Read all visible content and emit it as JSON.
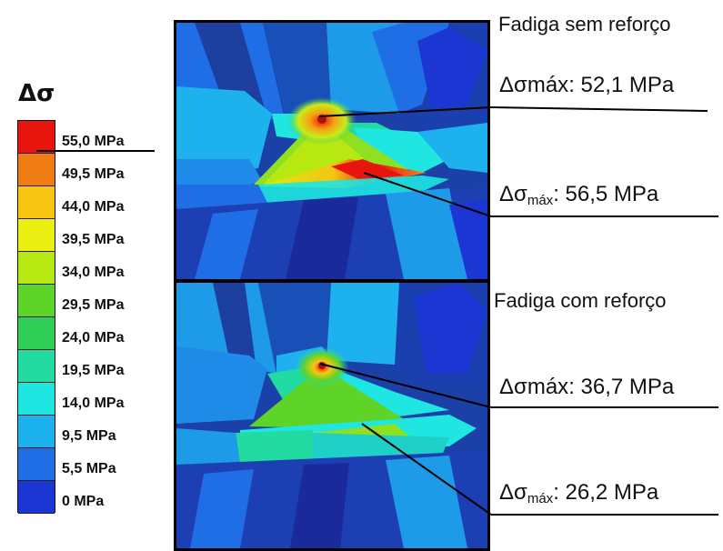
{
  "legend": {
    "title": "Δσ",
    "items": [
      {
        "label": "55,0 MPa",
        "color": "#e8150f"
      },
      {
        "label": "49,5 MPa",
        "color": "#ef7d14"
      },
      {
        "label": "44,0 MPa",
        "color": "#f6c612"
      },
      {
        "label": "39,5 MPa",
        "color": "#ecef12"
      },
      {
        "label": "34,0 MPa",
        "color": "#b8e812"
      },
      {
        "label": "29,5 MPa",
        "color": "#5fd428"
      },
      {
        "label": "24,0 MPa",
        "color": "#2fcf57"
      },
      {
        "label": "19,5 MPa",
        "color": "#22dba1"
      },
      {
        "label": "14,0 MPa",
        "color": "#1fe6e0"
      },
      {
        "label": "9,5 MPa",
        "color": "#1db2ee"
      },
      {
        "label": "5,5 MPa",
        "color": "#1f6ee6"
      },
      {
        "label": "0 MPa",
        "color": "#1c36d4"
      }
    ]
  },
  "cases": [
    {
      "title": "Fadiga sem reforço",
      "annotations": [
        {
          "symbol": "Δσmáx",
          "value": "52,1 MPa"
        },
        {
          "symbol": "Δσ",
          "subscript": "máx",
          "value": "56,5 MPa"
        }
      ]
    },
    {
      "title": "Fadiga com reforço",
      "annotations": [
        {
          "symbol": "Δσmáx",
          "value": "36,7 MPa"
        },
        {
          "symbol": "Δσ",
          "subscript": "máx",
          "value": "26,2 MPa"
        }
      ]
    }
  ]
}
